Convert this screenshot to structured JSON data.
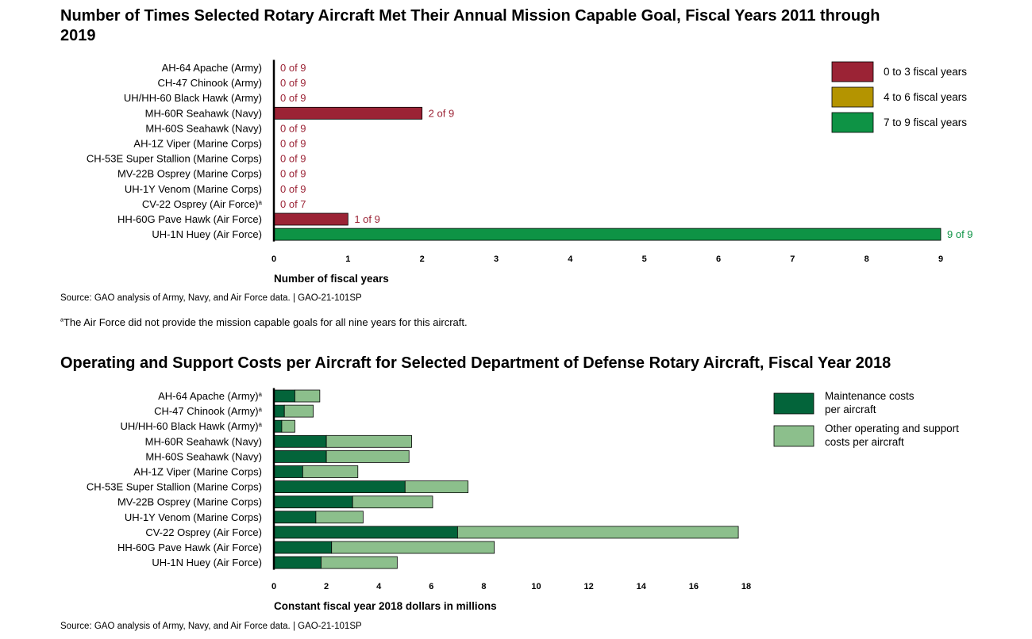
{
  "chart_data": [
    {
      "type": "bar",
      "orientation": "horizontal",
      "title": "Number of Times Selected Rotary Aircraft Met Their Annual Mission Capable Goal, Fiscal Years 2011 through 2019",
      "categories": [
        "AH-64 Apache (Army)",
        "CH-47 Chinook (Army)",
        "UH/HH-60 Black Hawk (Army)",
        "MH-60R Seahawk (Navy)",
        "MH-60S Seahawk (Navy)",
        "AH-1Z Viper (Marine Corps)",
        "CH-53E Super Stallion (Marine Corps)",
        "MV-22B Osprey (Marine Corps)",
        "UH-1Y Venom (Marine Corps)",
        "CV-22 Osprey (Air Force)",
        "HH-60G Pave Hawk (Air Force)",
        "UH-1N Huey (Air Force)"
      ],
      "superscripts": [
        "",
        "",
        "",
        "",
        "",
        "",
        "",
        "",
        "",
        "a",
        "",
        ""
      ],
      "values": [
        0,
        0,
        0,
        2,
        0,
        0,
        0,
        0,
        0,
        0,
        1,
        9
      ],
      "data_labels": [
        "0 of 9",
        "0 of 9",
        "0 of 9",
        "2 of 9",
        "0 of 9",
        "0 of 9",
        "0 of 9",
        "0 of 9",
        "0 of 9",
        "0 of 7",
        "1 of 9",
        "9 of 9"
      ],
      "bar_colors": [
        "#9b2335",
        "#9b2335",
        "#9b2335",
        "#9b2335",
        "#9b2335",
        "#9b2335",
        "#9b2335",
        "#9b2335",
        "#9b2335",
        "#9b2335",
        "#9b2335",
        "#0e9345"
      ],
      "xlabel": "Number of fiscal years",
      "xlim": [
        0,
        9
      ],
      "xticks": [
        0,
        1,
        2,
        3,
        4,
        5,
        6,
        7,
        8,
        9
      ],
      "legend": [
        {
          "label": "0 to 3 fiscal years",
          "color": "#9b2335"
        },
        {
          "label": "4 to 6 fiscal years",
          "color": "#b49400"
        },
        {
          "label": "7 to 9 fiscal years",
          "color": "#0e9345"
        }
      ],
      "legend_position": "top-right",
      "source": "Source: GAO analysis of Army, Navy, and Air Force data.  |  GAO-21-101SP",
      "note": "The Air Force did not provide the mission capable goals for all nine years for this aircraft.",
      "note_marker": "a"
    },
    {
      "type": "bar",
      "orientation": "horizontal",
      "stacked": true,
      "title": "Operating and Support Costs per Aircraft for Selected Department of Defense Rotary Aircraft, Fiscal Year 2018",
      "categories": [
        "AH-64 Apache (Army)",
        "CH-47 Chinook (Army)",
        "UH/HH-60 Black Hawk (Army)",
        "MH-60R Seahawk (Navy)",
        "MH-60S Seahawk (Navy)",
        "AH-1Z Viper (Marine Corps)",
        "CH-53E Super Stallion (Marine Corps)",
        "MV-22B Osprey (Marine Corps)",
        "UH-1Y Venom (Marine Corps)",
        "CV-22 Osprey (Air Force)",
        "HH-60G Pave Hawk (Air Force)",
        "UH-1N Huey (Air Force)"
      ],
      "superscripts": [
        "a",
        "a",
        "a",
        "",
        "",
        "",
        "",
        "",
        "",
        "",
        "",
        ""
      ],
      "series": [
        {
          "name": "Maintenance costs per aircraft",
          "color": "#03643a",
          "values": [
            0.8,
            0.4,
            0.3,
            2.0,
            2.0,
            1.1,
            5.0,
            3.0,
            1.6,
            7.0,
            2.2,
            1.8
          ]
        },
        {
          "name": "Other operating and support costs per aircraft",
          "color": "#8cbf8c",
          "values": [
            0.95,
            1.1,
            0.5,
            3.25,
            3.15,
            2.1,
            2.4,
            3.05,
            1.8,
            10.7,
            6.2,
            2.9
          ]
        }
      ],
      "xlabel": "Constant fiscal year 2018 dollars in millions",
      "xlim": [
        0,
        18
      ],
      "xticks": [
        0,
        2,
        4,
        6,
        8,
        10,
        12,
        14,
        16,
        18
      ],
      "legend_position": "top-right",
      "source": "Source: GAO analysis of Army, Navy, and Air Force data.  |  GAO-21-101SP"
    }
  ]
}
